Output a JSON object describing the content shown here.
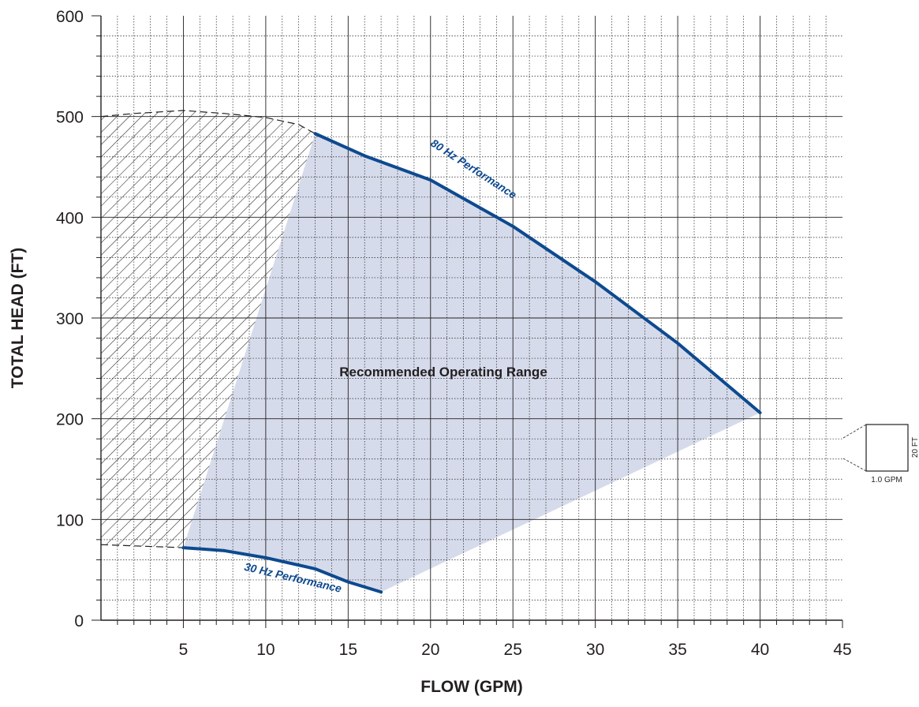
{
  "chart_data": {
    "type": "line",
    "xlabel": "FLOW (GPM)",
    "ylabel": "TOTAL HEAD (FT)",
    "xlim": [
      0,
      45
    ],
    "ylim": [
      0,
      600
    ],
    "x_ticks": [
      5,
      10,
      15,
      20,
      25,
      30,
      35,
      40,
      45
    ],
    "y_ticks": [
      0,
      100,
      200,
      300,
      400,
      500,
      600
    ],
    "x_minor_step": 1,
    "y_minor_step": 20,
    "grid": true,
    "series": [
      {
        "name": "80 Hz Performance",
        "x": [
          13,
          16,
          20,
          25,
          30,
          35,
          40
        ],
        "y": [
          483,
          461,
          437,
          391,
          336,
          275,
          206
        ]
      },
      {
        "name": "30 Hz Performance",
        "x": [
          5,
          7.5,
          10,
          13,
          15,
          17
        ],
        "y": [
          72,
          69,
          62,
          51,
          38,
          28
        ]
      }
    ],
    "regions": [
      {
        "label": "Recommended Operating Range",
        "polygon": [
          [
            5,
            72
          ],
          [
            13,
            483
          ],
          [
            16,
            461
          ],
          [
            20,
            437
          ],
          [
            25,
            391
          ],
          [
            30,
            336
          ],
          [
            35,
            275
          ],
          [
            40,
            206
          ],
          [
            17,
            28
          ],
          [
            15,
            38
          ],
          [
            13,
            51
          ],
          [
            10,
            62
          ],
          [
            7.5,
            69
          ]
        ]
      },
      {
        "label": "",
        "hatched": true,
        "polygon": [
          [
            0,
            75
          ],
          [
            0,
            500
          ],
          [
            2,
            503
          ],
          [
            5,
            506
          ],
          [
            7.5,
            503
          ],
          [
            10,
            499
          ],
          [
            12,
            492
          ],
          [
            13,
            483
          ],
          [
            5,
            72
          ]
        ]
      }
    ],
    "scale_key": {
      "width_label": "1.0 GPM",
      "height_label": "20 FT"
    },
    "colors": {
      "curve": "#0d4a8f",
      "region_fill": "#d6dbeb",
      "grid": "#231f20"
    }
  }
}
